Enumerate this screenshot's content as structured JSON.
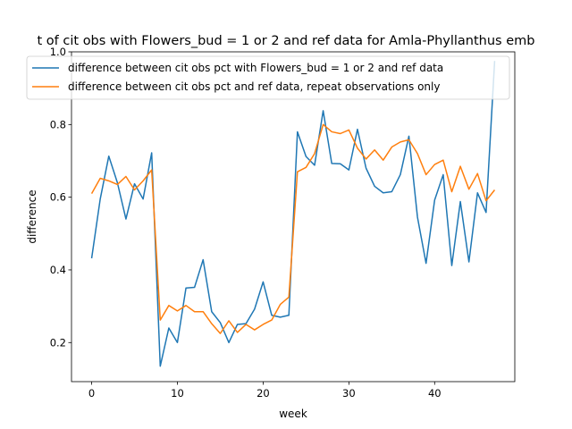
{
  "chart_data": {
    "type": "line",
    "title": "t of cit obs with Flowers_bud = 1 or 2 and ref data for Amla-Phyllanthus emb",
    "xlabel": "week",
    "ylabel": "difference",
    "xlim": [
      -2.35,
      49.35
    ],
    "ylim": [
      0.0925,
      1.0
    ],
    "xticks": [
      0,
      10,
      20,
      30,
      40
    ],
    "yticks": [
      0.2,
      0.4,
      0.6,
      0.8,
      1.0
    ],
    "xtick_labels": [
      "0",
      "10",
      "20",
      "30",
      "40"
    ],
    "ytick_labels": [
      "0.2",
      "0.4",
      "0.6",
      "0.8",
      "1.0"
    ],
    "legend_position": "top",
    "series": [
      {
        "name": "difference between cit obs pct with Flowers_bud = 1 or 2 and ref data",
        "color": "#1f77b4",
        "x": [
          0,
          1,
          2,
          3,
          4,
          5,
          6,
          7,
          8,
          9,
          10,
          11,
          12,
          13,
          14,
          15,
          16,
          17,
          18,
          19,
          20,
          21,
          22,
          23,
          24,
          25,
          26,
          27,
          28,
          29,
          30,
          31,
          32,
          33,
          34,
          35,
          36,
          37,
          38,
          39,
          40,
          41,
          42,
          43,
          44,
          45,
          46,
          47
        ],
        "values": [
          0.432,
          0.595,
          0.713,
          0.64,
          0.54,
          0.637,
          0.595,
          0.722,
          0.135,
          0.24,
          0.2,
          0.35,
          0.352,
          0.428,
          0.285,
          0.255,
          0.2,
          0.25,
          0.252,
          0.292,
          0.367,
          0.275,
          0.27,
          0.275,
          0.78,
          0.712,
          0.688,
          0.838,
          0.693,
          0.692,
          0.675,
          0.787,
          0.68,
          0.63,
          0.612,
          0.615,
          0.662,
          0.768,
          0.545,
          0.418,
          0.592,
          0.662,
          0.412,
          0.588,
          0.422,
          0.612,
          0.558,
          0.975
        ]
      },
      {
        "name": "difference between cit obs pct and ref data, repeat observations only",
        "color": "#ff7f0e",
        "x": [
          0,
          1,
          2,
          3,
          4,
          5,
          6,
          7,
          8,
          9,
          10,
          11,
          12,
          13,
          14,
          15,
          16,
          17,
          18,
          19,
          20,
          21,
          22,
          23,
          24,
          25,
          26,
          27,
          28,
          29,
          30,
          31,
          32,
          33,
          34,
          35,
          36,
          37,
          38,
          39,
          40,
          41,
          42,
          43,
          44,
          45,
          46,
          47
        ],
        "values": [
          0.61,
          0.652,
          0.645,
          0.635,
          0.657,
          0.62,
          0.645,
          0.675,
          0.262,
          0.302,
          0.287,
          0.302,
          0.285,
          0.285,
          0.252,
          0.225,
          0.26,
          0.228,
          0.25,
          0.235,
          0.25,
          0.262,
          0.305,
          0.325,
          0.67,
          0.682,
          0.72,
          0.8,
          0.78,
          0.775,
          0.785,
          0.735,
          0.705,
          0.73,
          0.702,
          0.738,
          0.752,
          0.758,
          0.72,
          0.662,
          0.69,
          0.702,
          0.615,
          0.685,
          0.622,
          0.665,
          0.59,
          0.62
        ]
      }
    ]
  }
}
